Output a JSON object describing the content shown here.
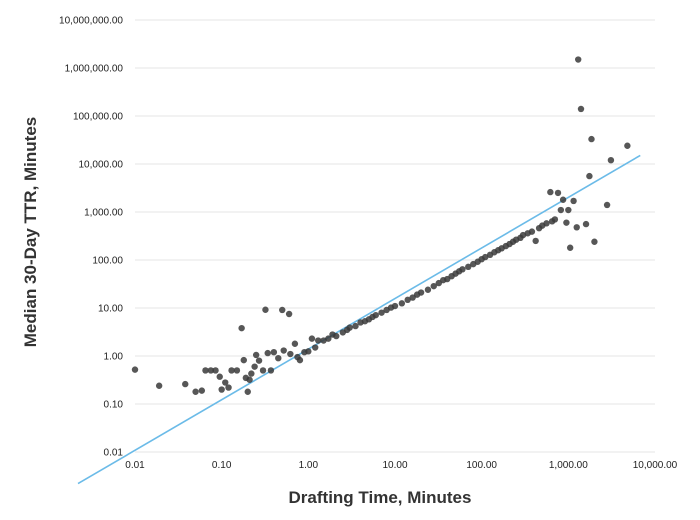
{
  "chart_data": {
    "type": "scatter",
    "title": "",
    "xlabel": "Drafting Time, Minutes",
    "ylabel": "Median 30-Day TTR, Minutes",
    "x_scale": "log",
    "y_scale": "log",
    "xlim": [
      0.01,
      10000
    ],
    "ylim": [
      0.01,
      10000000
    ],
    "x_ticks": [
      "0.01",
      "0.10",
      "1.00",
      "10.00",
      "100.00",
      "1,000.00",
      "10,000.00"
    ],
    "y_ticks": [
      "0.01",
      "0.10",
      "1.00",
      "10.00",
      "100.00",
      "1,000.00",
      "10,000.00",
      "100,000.00",
      "1,000,000.00",
      "10,000,000.00"
    ],
    "grid": "horizontal",
    "colors": {
      "points": "#3a3a3a",
      "trendline": "#6bbbe8",
      "grid": "#e6e6e6"
    },
    "trendline": {
      "type": "linear",
      "points": [
        [
          0.0022,
          0.0022
        ],
        [
          6760,
          15100
        ]
      ]
    },
    "series": [
      {
        "points": [
          [
            0.01,
            0.52
          ],
          [
            0.019,
            0.24
          ],
          [
            0.038,
            0.26
          ],
          [
            0.05,
            0.18
          ],
          [
            0.059,
            0.19
          ],
          [
            0.065,
            0.5
          ],
          [
            0.075,
            0.5
          ],
          [
            0.085,
            0.5
          ],
          [
            0.095,
            0.37
          ],
          [
            0.1,
            0.2
          ],
          [
            0.11,
            0.28
          ],
          [
            0.12,
            0.22
          ],
          [
            0.13,
            0.5
          ],
          [
            0.15,
            0.5
          ],
          [
            0.17,
            3.8
          ],
          [
            0.18,
            0.82
          ],
          [
            0.19,
            0.35
          ],
          [
            0.2,
            0.18
          ],
          [
            0.21,
            0.32
          ],
          [
            0.22,
            0.43
          ],
          [
            0.24,
            0.6
          ],
          [
            0.25,
            1.05
          ],
          [
            0.27,
            0.8
          ],
          [
            0.3,
            0.5
          ],
          [
            0.32,
            9.2
          ],
          [
            0.34,
            1.15
          ],
          [
            0.37,
            0.5
          ],
          [
            0.4,
            1.2
          ],
          [
            0.45,
            0.9
          ],
          [
            0.5,
            9.1
          ],
          [
            0.52,
            1.3
          ],
          [
            0.6,
            7.5
          ],
          [
            0.62,
            1.1
          ],
          [
            0.7,
            1.8
          ],
          [
            0.75,
            0.95
          ],
          [
            0.8,
            0.82
          ],
          [
            0.9,
            1.2
          ],
          [
            1.0,
            1.25
          ],
          [
            1.1,
            2.3
          ],
          [
            1.2,
            1.5
          ],
          [
            1.3,
            2.1
          ],
          [
            1.5,
            2.1
          ],
          [
            1.7,
            2.3
          ],
          [
            1.9,
            2.8
          ],
          [
            2.1,
            2.6
          ],
          [
            2.5,
            3.1
          ],
          [
            2.8,
            3.5
          ],
          [
            3.0,
            3.9
          ],
          [
            3.5,
            4.2
          ],
          [
            4.0,
            5.0
          ],
          [
            4.5,
            5.3
          ],
          [
            5.0,
            5.8
          ],
          [
            5.5,
            6.5
          ],
          [
            6.0,
            7.1
          ],
          [
            7.0,
            8.0
          ],
          [
            8.0,
            9.1
          ],
          [
            9.0,
            10.2
          ],
          [
            10.0,
            11.0
          ],
          [
            12.0,
            12.5
          ],
          [
            14.0,
            14.8
          ],
          [
            16.0,
            16.5
          ],
          [
            18.0,
            19.0
          ],
          [
            20.0,
            21.0
          ],
          [
            24.0,
            24.0
          ],
          [
            28.0,
            28.5
          ],
          [
            32.0,
            33.0
          ],
          [
            36.0,
            38.0
          ],
          [
            40.0,
            40.0
          ],
          [
            45.0,
            46.0
          ],
          [
            50.0,
            52.0
          ],
          [
            55.0,
            58.0
          ],
          [
            60.0,
            64.0
          ],
          [
            70.0,
            72.0
          ],
          [
            80.0,
            82.0
          ],
          [
            90.0,
            92.0
          ],
          [
            100.0,
            104.0
          ],
          [
            110.0,
            115.0
          ],
          [
            125.0,
            128.0
          ],
          [
            140.0,
            145.0
          ],
          [
            155.0,
            160.0
          ],
          [
            170.0,
            175.0
          ],
          [
            190.0,
            195.0
          ],
          [
            210.0,
            215.0
          ],
          [
            230.0,
            240.0
          ],
          [
            250.0,
            265.0
          ],
          [
            280.0,
            290.0
          ],
          [
            300.0,
            330.0
          ],
          [
            340.0,
            360.0
          ],
          [
            380.0,
            390.0
          ],
          [
            420.0,
            250.0
          ],
          [
            460.0,
            460.0
          ],
          [
            500.0,
            520.0
          ],
          [
            560.0,
            580.0
          ],
          [
            620.0,
            2600.0
          ],
          [
            650.0,
            640.0
          ],
          [
            700.0,
            700.0
          ],
          [
            760.0,
            2500.0
          ],
          [
            820.0,
            1100.0
          ],
          [
            870.0,
            1800.0
          ],
          [
            950.0,
            600.0
          ],
          [
            1000.0,
            1100.0
          ],
          [
            1050.0,
            180.0
          ],
          [
            1150.0,
            1700.0
          ],
          [
            1250.0,
            480.0
          ],
          [
            1300.0,
            1500000.0
          ],
          [
            1400.0,
            140000.0
          ],
          [
            1600.0,
            560.0
          ],
          [
            1750.0,
            5600.0
          ],
          [
            1850.0,
            33000.0
          ],
          [
            2000.0,
            240.0
          ],
          [
            2800.0,
            1400.0
          ],
          [
            3100.0,
            12000.0
          ],
          [
            4800.0,
            24000.0
          ]
        ]
      }
    ]
  }
}
